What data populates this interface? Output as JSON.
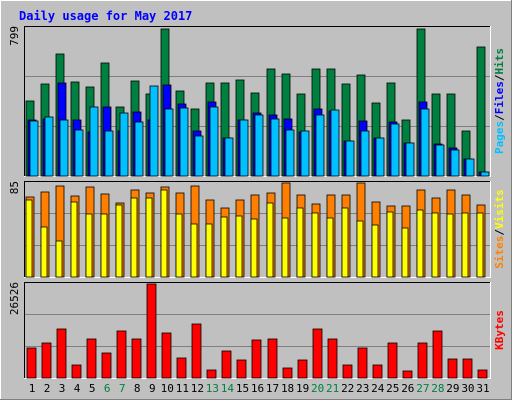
{
  "title": "Daily usage for May 2017",
  "colors": {
    "background": "#c0c0c0",
    "frame": "#ffffff",
    "title": "#0000ff",
    "hits": "#008040",
    "files": "#0000ff",
    "pages": "#00c0ff",
    "visits": "#ffff00",
    "sites": "#ff8000",
    "kbytes": "#ff0000",
    "weekend_day_label": "#008040",
    "weekday_day_label": "#000000"
  },
  "chart_data": [
    {
      "type": "bar",
      "panel": "hits_files_pages",
      "ymax_label": "799",
      "ylim": [
        0,
        799
      ],
      "categories": [
        "1",
        "2",
        "3",
        "4",
        "5",
        "6",
        "7",
        "8",
        "9",
        "10",
        "11",
        "12",
        "13",
        "14",
        "15",
        "16",
        "17",
        "18",
        "19",
        "20",
        "21",
        "22",
        "23",
        "24",
        "25",
        "26",
        "27",
        "28",
        "29",
        "30",
        "31"
      ],
      "side_labels": [
        "Pages",
        "/",
        "Files",
        "/",
        "Hits"
      ],
      "series": [
        {
          "name": "Hits",
          "values": [
            405,
            495,
            660,
            510,
            480,
            610,
            375,
            515,
            440,
            795,
            460,
            360,
            500,
            500,
            520,
            450,
            575,
            550,
            440,
            575,
            575,
            495,
            545,
            395,
            500,
            305,
            795,
            440,
            440,
            245,
            695
          ]
        },
        {
          "name": "Files",
          "values": [
            305,
            310,
            500,
            305,
            240,
            375,
            245,
            345,
            300,
            490,
            390,
            245,
            400,
            205,
            300,
            340,
            330,
            310,
            240,
            360,
            350,
            190,
            295,
            205,
            290,
            180,
            400,
            175,
            150,
            90,
            20
          ]
        },
        {
          "name": "Pages",
          "values": [
            295,
            320,
            300,
            250,
            370,
            245,
            340,
            290,
            485,
            360,
            365,
            215,
            370,
            205,
            300,
            330,
            310,
            250,
            245,
            330,
            355,
            190,
            245,
            205,
            280,
            180,
            360,
            165,
            140,
            90,
            20
          ]
        }
      ]
    },
    {
      "type": "bar",
      "panel": "visits_sites",
      "ymax_label": "85",
      "ylim": [
        0,
        85
      ],
      "categories": [
        "1",
        "2",
        "3",
        "4",
        "5",
        "6",
        "7",
        "8",
        "9",
        "10",
        "11",
        "12",
        "13",
        "14",
        "15",
        "16",
        "17",
        "18",
        "19",
        "20",
        "21",
        "22",
        "23",
        "24",
        "25",
        "26",
        "27",
        "28",
        "29",
        "30",
        "31"
      ],
      "side_labels": [
        "Sites",
        "/",
        "Visits"
      ],
      "series": [
        {
          "name": "Visits",
          "values": [
            70,
            45,
            33,
            68,
            57,
            57,
            65,
            71,
            71,
            79,
            57,
            48,
            48,
            54,
            55,
            52,
            67,
            53,
            62,
            58,
            53,
            62,
            51,
            47,
            59,
            44,
            61,
            58,
            57,
            58,
            58
          ]
        },
        {
          "name": "Sites",
          "values": [
            72,
            77,
            82,
            73,
            81,
            75,
            67,
            79,
            76,
            81,
            76,
            82,
            70,
            62,
            70,
            74,
            76,
            85,
            74,
            66,
            74,
            74,
            85,
            68,
            64,
            64,
            79,
            71,
            79,
            74,
            65
          ]
        }
      ]
    },
    {
      "type": "bar",
      "panel": "kbytes",
      "ymax_label": "26526",
      "ylim": [
        0,
        26526
      ],
      "categories": [
        "1",
        "2",
        "3",
        "4",
        "5",
        "6",
        "7",
        "8",
        "9",
        "10",
        "11",
        "12",
        "13",
        "14",
        "15",
        "16",
        "17",
        "18",
        "19",
        "20",
        "21",
        "22",
        "23",
        "24",
        "25",
        "26",
        "27",
        "28",
        "29",
        "30",
        "31"
      ],
      "side_labels": [
        "KBytes"
      ],
      "series": [
        {
          "name": "KBytes",
          "values": [
            8400,
            9900,
            13800,
            3800,
            11100,
            7000,
            13300,
            11000,
            26526,
            12800,
            5600,
            15200,
            2200,
            7500,
            5000,
            10700,
            11000,
            2800,
            5000,
            13800,
            11000,
            3800,
            8500,
            3800,
            9900,
            1900,
            9900,
            13300,
            5400,
            5400,
            2200
          ]
        }
      ]
    }
  ],
  "day_labels": [
    {
      "text": "1",
      "weekend": false
    },
    {
      "text": "2",
      "weekend": false
    },
    {
      "text": "3",
      "weekend": false
    },
    {
      "text": "4",
      "weekend": false
    },
    {
      "text": "5",
      "weekend": false
    },
    {
      "text": "6",
      "weekend": true
    },
    {
      "text": "7",
      "weekend": true
    },
    {
      "text": "8",
      "weekend": false
    },
    {
      "text": "9",
      "weekend": false
    },
    {
      "text": "10",
      "weekend": false
    },
    {
      "text": "11",
      "weekend": false
    },
    {
      "text": "12",
      "weekend": false
    },
    {
      "text": "13",
      "weekend": true
    },
    {
      "text": "14",
      "weekend": true
    },
    {
      "text": "15",
      "weekend": false
    },
    {
      "text": "16",
      "weekend": false
    },
    {
      "text": "17",
      "weekend": false
    },
    {
      "text": "18",
      "weekend": false
    },
    {
      "text": "19",
      "weekend": false
    },
    {
      "text": "20",
      "weekend": true
    },
    {
      "text": "21",
      "weekend": true
    },
    {
      "text": "22",
      "weekend": false
    },
    {
      "text": "23",
      "weekend": false
    },
    {
      "text": "24",
      "weekend": false
    },
    {
      "text": "25",
      "weekend": false
    },
    {
      "text": "26",
      "weekend": false
    },
    {
      "text": "27",
      "weekend": true
    },
    {
      "text": "28",
      "weekend": true
    },
    {
      "text": "29",
      "weekend": false
    },
    {
      "text": "30",
      "weekend": false
    },
    {
      "text": "31",
      "weekend": false
    }
  ]
}
